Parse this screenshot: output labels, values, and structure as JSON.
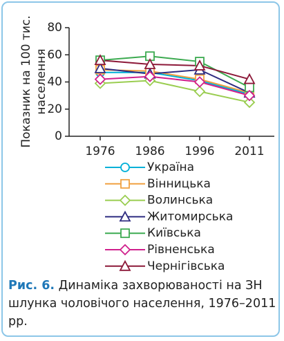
{
  "chart_data": {
    "type": "line",
    "ylabel": [
      "Показник на 100 тис.",
      "населення"
    ],
    "categories": [
      "1976",
      "1986",
      "1996",
      "2011"
    ],
    "ylim": [
      0,
      80
    ],
    "yticks": [
      0,
      20,
      40,
      60,
      80
    ],
    "series": [
      {
        "name": "Україна",
        "color": "#00b0d8",
        "marker": "circle",
        "values": [
          47,
          47,
          41,
          31
        ]
      },
      {
        "name": "Вінницька",
        "color": "#f0a040",
        "marker": "square",
        "values": [
          49,
          48,
          42,
          32
        ]
      },
      {
        "name": "Волинська",
        "color": "#9acd50",
        "marker": "diamond",
        "values": [
          39,
          41,
          33,
          25
        ]
      },
      {
        "name": "Житомирська",
        "color": "#2e2c80",
        "marker": "triangle",
        "values": [
          50,
          46,
          49,
          32
        ]
      },
      {
        "name": "Київська",
        "color": "#3caa50",
        "marker": "square",
        "values": [
          56,
          59,
          55,
          36
        ]
      },
      {
        "name": "Рівненська",
        "color": "#d0208c",
        "marker": "diamond",
        "values": [
          42,
          44,
          40,
          30
        ]
      },
      {
        "name": "Чернігівська",
        "color": "#8c1838",
        "marker": "triangle",
        "values": [
          56,
          53,
          52,
          42
        ]
      }
    ],
    "caption_label": "Рис. 6.",
    "caption_text": "Динаміка захворюваності на ЗН шлунка чоловічого населення, 1976–2011 рр."
  }
}
